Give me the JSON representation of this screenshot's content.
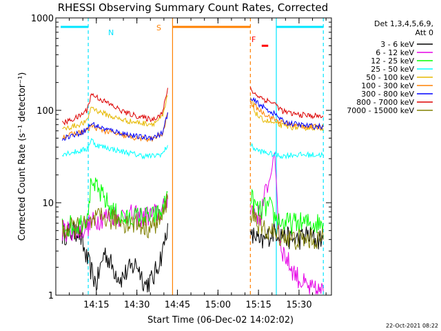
{
  "chart_data": {
    "type": "line",
    "title": "RHESSI Observing Summary Count Rates, Corrected",
    "xlabel": "Start Time (06-Dec-02 14:02:02)",
    "ylabel": "Corrected Count Rate (s⁻¹ detector⁻¹)",
    "yscale": "log",
    "ylim": [
      1,
      1000
    ],
    "xlim_minutes": [
      14.0,
      15.7
    ],
    "x_ticks": [
      {
        "label": "14:15",
        "hours": 14.25
      },
      {
        "label": "14:30",
        "hours": 14.5
      },
      {
        "label": "14:45",
        "hours": 14.75
      },
      {
        "label": "15:00",
        "hours": 15.0
      },
      {
        "label": "15:15",
        "hours": 15.25
      },
      {
        "label": "15:30",
        "hours": 15.5
      }
    ],
    "y_ticks": [
      {
        "label": "1",
        "value": 1
      },
      {
        "label": "10",
        "value": 10
      },
      {
        "label": "100",
        "value": 100
      },
      {
        "label": "1000",
        "value": 1000
      }
    ],
    "legend": {
      "header1": "Det 1,3,4,5,6,9,",
      "header2": "Att 0",
      "placement": "right"
    },
    "series": [
      {
        "name": "3 - 6 keV",
        "color": "#000000",
        "hours": [
          14.04,
          14.14,
          14.19,
          14.25,
          14.3,
          14.35,
          14.4,
          14.44,
          14.5,
          14.55,
          14.6,
          14.66,
          14.69,
          15.2,
          15.23,
          15.26,
          15.29,
          15.32,
          15.35,
          15.4,
          15.45,
          15.5,
          15.55,
          15.6,
          15.65
        ],
        "values": [
          4.5,
          5,
          2.5,
          1.3,
          3,
          2,
          1.5,
          1.8,
          2.2,
          1.3,
          1.5,
          3,
          6,
          4,
          4.5,
          3.5,
          4,
          4.5,
          5,
          4.5,
          4,
          4,
          4.5,
          4,
          4
        ]
      },
      {
        "name": "6 - 12 keV",
        "color": "#e600e6",
        "hours": [
          14.04,
          14.14,
          14.19,
          14.25,
          14.3,
          14.35,
          14.4,
          14.44,
          14.5,
          14.55,
          14.6,
          14.66,
          14.69,
          15.2,
          15.23,
          15.26,
          15.29,
          15.32,
          15.35,
          15.38,
          15.4,
          15.45,
          15.5,
          15.55,
          15.6,
          15.65
        ],
        "values": [
          5,
          5,
          5.5,
          6.5,
          7,
          7.5,
          7,
          7.5,
          7,
          7,
          7.5,
          8,
          12,
          9,
          8,
          7,
          12,
          18,
          35,
          4,
          3,
          2,
          1.5,
          1.2,
          1.1,
          1.1
        ]
      },
      {
        "name": "12 - 25 keV",
        "color": "#00ff00",
        "hours": [
          14.04,
          14.14,
          14.19,
          14.22,
          14.25,
          14.3,
          14.35,
          14.4,
          14.44,
          14.5,
          14.55,
          14.6,
          14.66,
          14.69,
          15.2,
          15.23,
          15.26,
          15.29,
          15.32,
          15.35,
          15.4,
          15.45,
          15.5,
          15.55,
          15.6,
          15.65
        ],
        "values": [
          5.5,
          5.8,
          7,
          17,
          14,
          11,
          8,
          7,
          6.5,
          7,
          7,
          7,
          8,
          13,
          12,
          9,
          8,
          9,
          9,
          7,
          6,
          6,
          6,
          6,
          6,
          6
        ]
      },
      {
        "name": "25 - 50 keV",
        "color": "#00ffff",
        "hours": [
          14.04,
          14.14,
          14.19,
          14.22,
          14.25,
          14.3,
          14.35,
          14.4,
          14.44,
          14.5,
          14.55,
          14.6,
          14.66,
          14.69,
          15.2,
          15.23,
          15.26,
          15.29,
          15.32,
          15.35,
          15.4,
          15.45,
          15.5,
          15.55,
          15.6,
          15.65
        ],
        "values": [
          34,
          36,
          38,
          48,
          42,
          40,
          38,
          36,
          35,
          33,
          32,
          32,
          34,
          42,
          42,
          38,
          36,
          35,
          34,
          33,
          32,
          33,
          33,
          33,
          33,
          33
        ]
      },
      {
        "name": "50 - 100 keV",
        "color": "#e6b800",
        "hours": [
          14.04,
          14.14,
          14.19,
          14.22,
          14.25,
          14.3,
          14.35,
          14.4,
          14.44,
          14.5,
          14.55,
          14.6,
          14.66,
          14.69,
          15.2,
          15.23,
          15.26,
          15.29,
          15.32,
          15.35,
          15.4,
          15.45,
          15.5,
          15.55,
          15.6,
          15.65
        ],
        "values": [
          62,
          70,
          75,
          110,
          100,
          92,
          85,
          80,
          77,
          74,
          72,
          72,
          85,
          145,
          140,
          95,
          82,
          78,
          75,
          72,
          68,
          66,
          65,
          65,
          65,
          64
        ]
      },
      {
        "name": "100 - 300 keV",
        "color": "#ff8000",
        "hours": [
          14.04,
          14.14,
          14.19,
          14.22,
          14.25,
          14.3,
          14.35,
          14.4,
          14.44,
          14.5,
          14.55,
          14.6,
          14.66,
          14.69,
          15.2,
          15.23,
          15.26,
          15.29,
          15.32,
          15.35,
          15.4,
          15.45,
          15.5,
          15.55,
          15.6,
          15.65
        ],
        "values": [
          52,
          57,
          60,
          68,
          64,
          60,
          57,
          54,
          52,
          50,
          49,
          49,
          55,
          95,
          120,
          110,
          100,
          92,
          85,
          80,
          73,
          70,
          68,
          67,
          66,
          66
        ]
      },
      {
        "name": "300 - 800 keV",
        "color": "#0000ff",
        "hours": [
          14.04,
          14.14,
          14.19,
          14.22,
          14.25,
          14.3,
          14.35,
          14.4,
          14.44,
          14.5,
          14.55,
          14.6,
          14.66,
          14.69,
          15.2,
          15.23,
          15.26,
          15.29,
          15.32,
          15.35,
          15.4,
          15.45,
          15.5,
          15.55,
          15.6,
          15.65
        ],
        "values": [
          50,
          56,
          62,
          72,
          68,
          63,
          60,
          57,
          55,
          52,
          51,
          51,
          57,
          95,
          130,
          125,
          115,
          105,
          98,
          92,
          76,
          72,
          70,
          68,
          67,
          67
        ]
      },
      {
        "name": "800 - 7000 keV",
        "color": "#dd0000",
        "hours": [
          14.04,
          14.14,
          14.19,
          14.22,
          14.25,
          14.3,
          14.35,
          14.4,
          14.44,
          14.5,
          14.55,
          14.6,
          14.66,
          14.69,
          15.2,
          15.23,
          15.26,
          15.29,
          15.32,
          15.35,
          15.4,
          15.45,
          15.5,
          15.55,
          15.6,
          15.65
        ],
        "values": [
          72,
          85,
          100,
          150,
          140,
          125,
          112,
          100,
          93,
          87,
          82,
          80,
          95,
          175,
          170,
          150,
          140,
          130,
          125,
          118,
          98,
          92,
          90,
          88,
          87,
          86
        ]
      },
      {
        "name": "7000 - 15000 keV",
        "color": "#808000",
        "hours": [
          14.04,
          14.14,
          14.19,
          14.25,
          14.3,
          14.35,
          14.4,
          14.44,
          14.5,
          14.55,
          14.6,
          14.66,
          14.69,
          15.2,
          15.23,
          15.26,
          15.29,
          15.32,
          15.35,
          15.4,
          15.45,
          15.5,
          15.55,
          15.6,
          15.65
        ],
        "values": [
          5,
          5.5,
          5.5,
          6.5,
          7,
          6.5,
          6.5,
          6,
          6,
          5.5,
          5.5,
          7,
          11,
          8,
          7,
          5.5,
          5,
          5,
          4.5,
          4.5,
          4,
          4,
          4,
          4,
          4
        ]
      }
    ],
    "annotations": {
      "night_label": "N",
      "saa_label": "S",
      "flare_label": "F",
      "night_color": "#00e5ff",
      "saa_color": "#ff8000",
      "flare_color": "#ff0000"
    },
    "vertical_markers": [
      {
        "kind": "night-start",
        "hours": 14.2,
        "style": "dashed",
        "color": "#00e5ff"
      },
      {
        "kind": "saa-start",
        "hours": 14.72,
        "style": "solid",
        "color": "#ff8000"
      },
      {
        "kind": "saa-end",
        "hours": 15.2,
        "style": "dashed",
        "color": "#ff8000"
      },
      {
        "kind": "night-end",
        "hours": 15.36,
        "style": "solid",
        "color": "#00e5ff"
      },
      {
        "kind": "night-start",
        "hours": 15.65,
        "style": "dashed",
        "color": "#00e5ff"
      }
    ],
    "bars": [
      {
        "kind": "night",
        "start_hours": 14.03,
        "end_hours": 14.2,
        "value": 800,
        "color": "#00e5ff"
      },
      {
        "kind": "saa",
        "start_hours": 14.72,
        "end_hours": 15.2,
        "value": 800,
        "color": "#ff8000"
      },
      {
        "kind": "flare",
        "start_hours": 15.27,
        "end_hours": 15.31,
        "value": 500,
        "color": "#ff0000"
      },
      {
        "kind": "night",
        "start_hours": 15.36,
        "end_hours": 15.65,
        "value": 800,
        "color": "#00e5ff"
      }
    ],
    "timestamp": "22-Oct-2021 08:22"
  }
}
